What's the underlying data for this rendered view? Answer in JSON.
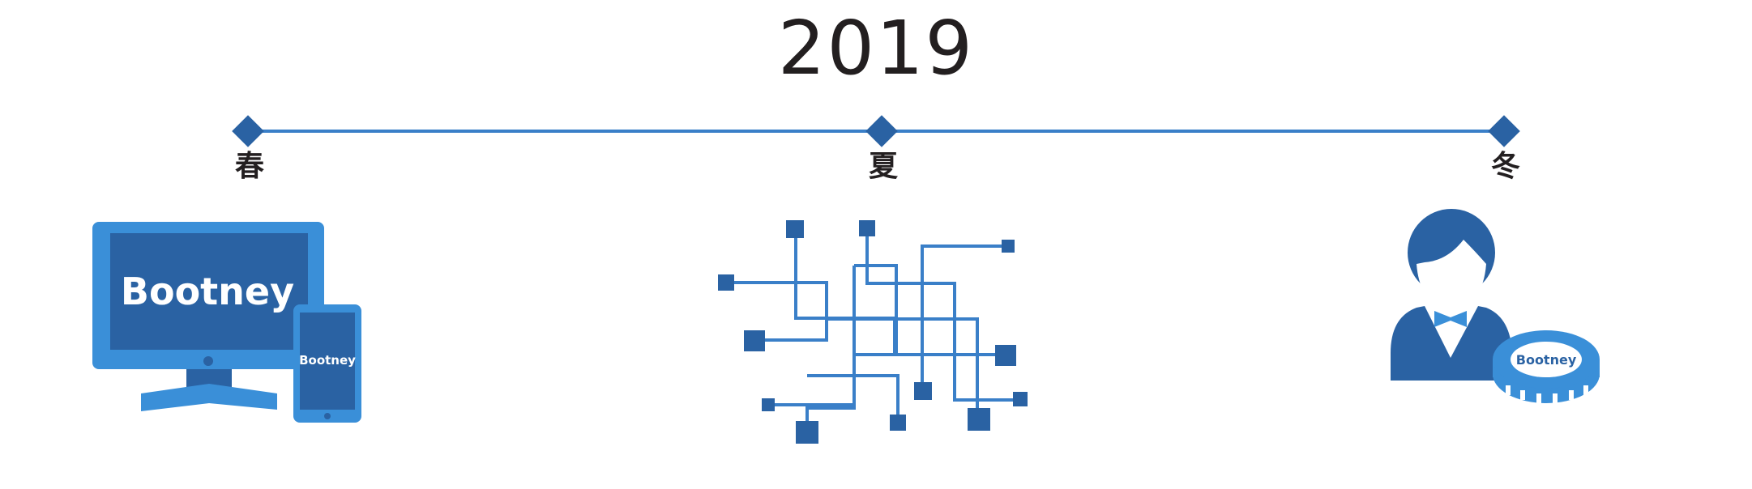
{
  "title": {
    "year": "2019"
  },
  "timeline": {
    "seasons": [
      {
        "label": "春"
      },
      {
        "label": "夏"
      },
      {
        "label": "冬"
      }
    ]
  },
  "brand": {
    "name": "Bootney"
  },
  "colors": {
    "dark_blue": "#2a62a3",
    "light_blue": "#3a8fd8",
    "line_blue": "#3a7fc8",
    "text": "#231f20"
  },
  "icons": {
    "spring": "computer-and-tablet-icon",
    "summer": "circuit-network-icon",
    "winter": "dealer-with-chip-icon"
  }
}
